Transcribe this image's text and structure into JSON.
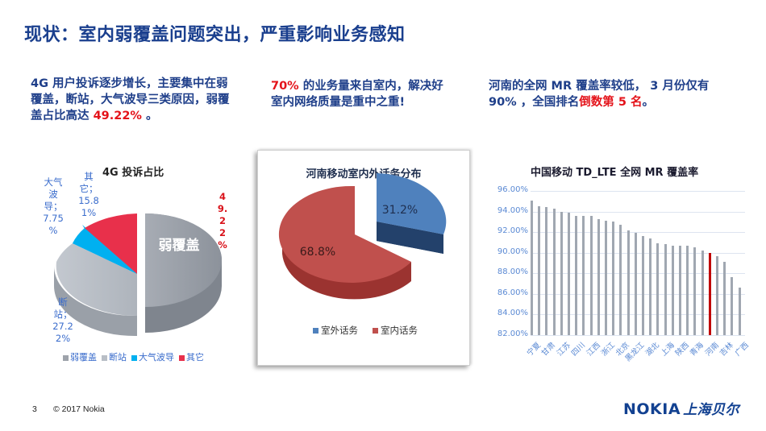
{
  "title": "现状：室内弱覆盖问题突出，严重影响业务感知",
  "notes": {
    "note1": {
      "text": "4G 用户投诉逐步增长，主要集中在弱覆盖，断站，大气波导三类原因，弱覆盖占比高达 ",
      "highlight": "49.22%",
      "suffix": " 。"
    },
    "note2": {
      "highlight": "70%",
      "text": " 的业务量来自室内，解决好室内网络质量是重中之重!"
    },
    "note3": {
      "text": "河南的全网 MR 覆盖率较低， 3 月份仅有 90% ，全国排名",
      "highlight": "倒数第 5 名",
      "suffix": "。"
    }
  },
  "colors": {
    "title": "#1a3f8e",
    "highlight": "#e4131a",
    "weak": "#9ea3ab",
    "station": "#b8bec6",
    "ducting": "#00b0f0",
    "other": "#e8304b",
    "outdoor": "#4f81bd",
    "indoor": "#c0504d",
    "bar": "#a0a7b1",
    "bar_highlight": "#c00000"
  },
  "chart_data": [
    {
      "type": "pie",
      "title": "4G 投诉占比",
      "categories": [
        "弱覆盖",
        "断站",
        "大气波导",
        "其它"
      ],
      "values": [
        49.22,
        27.22,
        7.75,
        15.81
      ],
      "labels": {
        "weak_inside": "弱覆盖",
        "weak": "4\n9.\n2\n2\n%",
        "station": "断\n站；\n27.2\n2%",
        "ducting": "大气\n波\n导；\n7.75\n%",
        "other": "其\n它；\n15.8\n1%"
      },
      "legend": [
        "弱覆盖",
        "断站",
        "大气波导",
        "其它"
      ],
      "legend_position": "bottom"
    },
    {
      "type": "pie",
      "title": "河南移动室内外话务分布",
      "categories": [
        "室外话务",
        "室内话务"
      ],
      "values": [
        31.2,
        68.8
      ],
      "labels": {
        "outdoor": "31.2%",
        "indoor": "68.8%"
      },
      "legend": [
        "室外话务",
        "室内话务"
      ],
      "legend_position": "bottom"
    },
    {
      "type": "bar",
      "title": "中国移动 TD_LTE 全网 MR 覆盖率",
      "categories": [
        "宁夏",
        "",
        "甘肃",
        "",
        "江苏",
        "",
        "四川",
        "",
        "江西",
        "",
        "浙江",
        "",
        "北京",
        "",
        "黑龙江",
        "",
        "湖北",
        "",
        "上海",
        "",
        "陕西",
        "",
        "青海",
        "",
        "河南",
        "",
        "吉林",
        "",
        "广西"
      ],
      "x_tick_labels": [
        "宁夏",
        "甘肃",
        "江苏",
        "四川",
        "江西",
        "浙江",
        "北京",
        "黑龙江",
        "湖北",
        "上海",
        "陕西",
        "青海",
        "河南",
        "吉林",
        "广西"
      ],
      "values": [
        95.1,
        94.55,
        94.4,
        94.25,
        94.0,
        93.9,
        93.6,
        93.6,
        93.55,
        93.3,
        93.1,
        93.05,
        92.7,
        92.15,
        91.95,
        91.65,
        91.35,
        90.9,
        90.85,
        90.7,
        90.65,
        90.65,
        90.5,
        90.25,
        90.0,
        89.65,
        89.15,
        87.6,
        86.65
      ],
      "highlight_index": 24,
      "yticks": [
        "96.00%",
        "94.00%",
        "92.00%",
        "90.00%",
        "88.00%",
        "86.00%",
        "84.00%",
        "82.00%"
      ],
      "ylim": [
        82,
        96
      ],
      "grid": true,
      "xlabel": "",
      "ylabel": ""
    }
  ],
  "footer": {
    "page": "3",
    "copyright": "© 2017 Nokia",
    "logo": "NOKIA",
    "logo_cn": "上海贝尔"
  }
}
